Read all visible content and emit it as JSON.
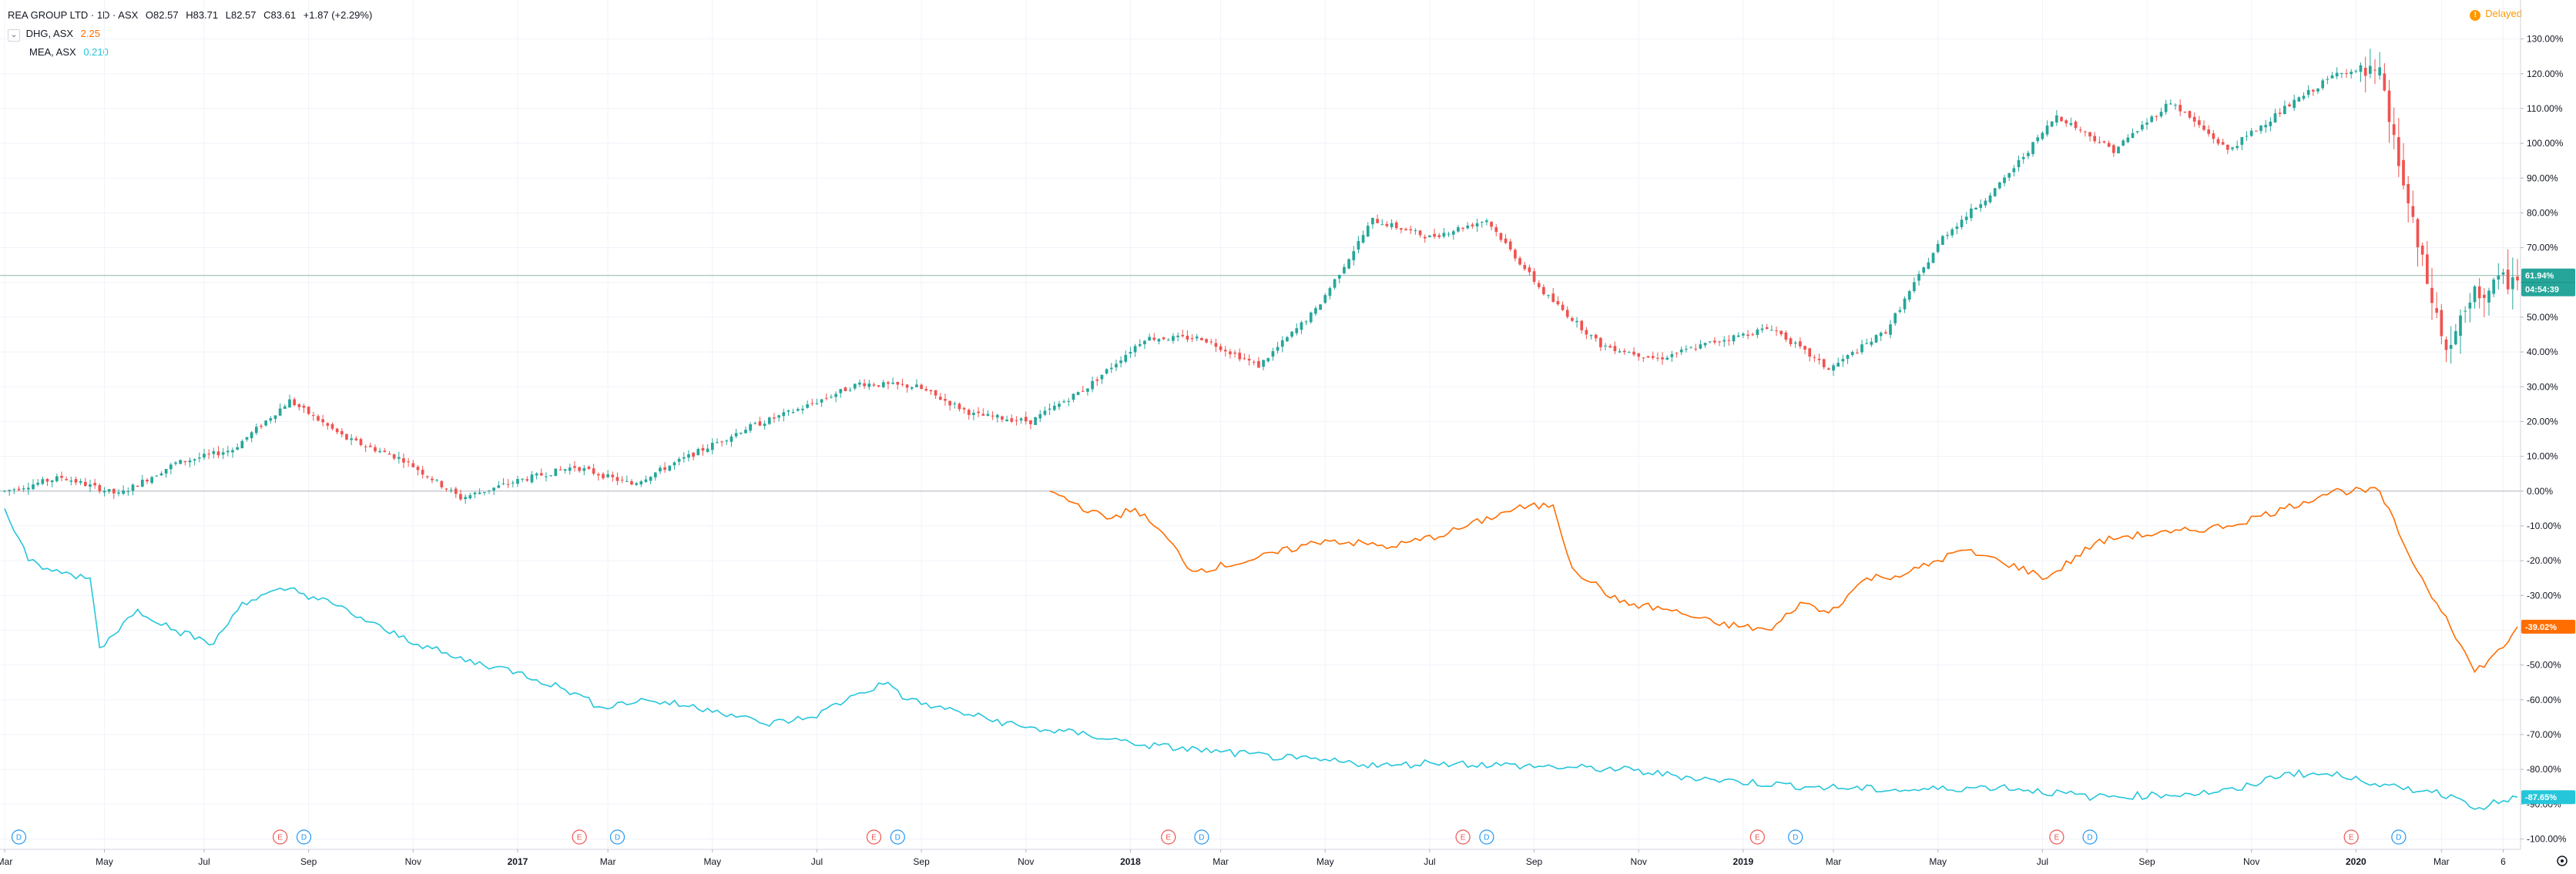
{
  "header": {
    "title": "REA GROUP LTD · 1D · ASX",
    "open": "O82.57",
    "high": "H83.71",
    "low": "L82.57",
    "close": "C83.61",
    "change": "+1.87 (+2.29%)",
    "collapse_glyph": "⌄",
    "delayed_label": "Delayed",
    "delayed_glyph": "!"
  },
  "compare": [
    {
      "symbol": "DHG, ASX",
      "value": "2.25",
      "color": "#ff6d00"
    },
    {
      "symbol": "MEA, ASX",
      "value": "0.210",
      "color": "#26c6da"
    }
  ],
  "colors": {
    "up": "#26a69a",
    "down": "#ef5350",
    "grid": "#f0f3fa",
    "zero_line": "#b2b5be"
  },
  "chart_data": {
    "type": "line",
    "title": "REA GROUP LTD · 1D · ASX",
    "y_unit": "%",
    "ylim": [
      -103,
      135
    ],
    "y_ticks": [
      130,
      120,
      110,
      100,
      90,
      80,
      70,
      60,
      50,
      40,
      30,
      20,
      10,
      0,
      -10,
      -20,
      -30,
      -40,
      -50,
      -60,
      -70,
      -80,
      -90,
      -100
    ],
    "x_ticks": [
      "Mar",
      "May",
      "Jul",
      "Sep",
      "Nov",
      "2017",
      "Mar",
      "May",
      "Jul",
      "Sep",
      "Nov",
      "2018",
      "Mar",
      "May",
      "Jul",
      "Sep",
      "Nov",
      "2019",
      "Mar",
      "May",
      "Jul",
      "Sep",
      "Nov",
      "2020",
      "Mar",
      "6"
    ],
    "x_tick_index": [
      0,
      21,
      42,
      64,
      86,
      108,
      127,
      149,
      171,
      193,
      215,
      237,
      256,
      278,
      300,
      322,
      344,
      366,
      385,
      407,
      429,
      451,
      473,
      495,
      513,
      526
    ],
    "n_days": 530,
    "grid": true,
    "series": [
      {
        "name": "REA GROUP LTD",
        "style": "candles",
        "color": "#26a69a",
        "x": [
          0,
          12,
          24,
          36,
          48,
          60,
          72,
          84,
          96,
          108,
          120,
          132,
          144,
          156,
          168,
          180,
          192,
          204,
          216,
          228,
          240,
          252,
          264,
          276,
          288,
          300,
          312,
          324,
          336,
          348,
          360,
          372,
          384,
          396,
          408,
          420,
          432,
          444,
          456,
          468,
          480,
          492,
          500,
          508,
          514,
          520,
          526,
          529
        ],
        "values": [
          0,
          4,
          -1,
          8,
          12,
          26,
          15,
          9,
          -2,
          3,
          7,
          2,
          10,
          18,
          24,
          31,
          30,
          22,
          20,
          30,
          44,
          44,
          36,
          52,
          78,
          73,
          78,
          57,
          42,
          38,
          43,
          47,
          35,
          46,
          73,
          88,
          108,
          98,
          112,
          98,
          110,
          121,
          119,
          70,
          40,
          56,
          60,
          62
        ]
      },
      {
        "name": "DHG, ASX",
        "style": "line",
        "color": "#ff6d00",
        "x": [
          220,
          232,
          238,
          245,
          250,
          262,
          278,
          292,
          304,
          318,
          326,
          330,
          340,
          350,
          360,
          372,
          378,
          384,
          392,
          400,
          412,
          420,
          430,
          440,
          446,
          456,
          468,
          480,
          490,
          500,
          505,
          510,
          514,
          520,
          526,
          529
        ],
        "values": [
          0,
          -8,
          -5,
          -14,
          -23,
          -20,
          -14,
          -16,
          -12,
          -5,
          -4,
          -22,
          -32,
          -34,
          -38,
          -40,
          -32,
          -35,
          -25,
          -24,
          -17,
          -20,
          -25,
          -15,
          -13,
          -12,
          -10,
          -5,
          0,
          0,
          -15,
          -28,
          -36,
          -52,
          -45,
          -39
        ]
      },
      {
        "name": "MEA, ASX",
        "style": "line",
        "color": "#26c6da",
        "x": [
          0,
          5,
          10,
          18,
          20,
          28,
          36,
          44,
          50,
          60,
          70,
          80,
          95,
          108,
          120,
          125,
          135,
          150,
          160,
          170,
          180,
          186,
          190,
          196,
          215,
          228,
          240,
          256,
          272,
          292,
          300,
          320,
          340,
          360,
          380,
          400,
          420,
          440,
          460,
          470,
          480,
          495,
          500,
          510,
          516,
          521,
          526,
          529
        ],
        "values": [
          -5,
          -20,
          -23,
          -25,
          -45,
          -34,
          -40,
          -44,
          -32,
          -28,
          -33,
          -40,
          -48,
          -52,
          -58,
          -62,
          -60,
          -63,
          -67,
          -65,
          -58,
          -55,
          -60,
          -62,
          -68,
          -70,
          -73,
          -75,
          -77,
          -79,
          -78,
          -79,
          -80,
          -83,
          -85,
          -86,
          -85,
          -88,
          -87,
          -86,
          -81,
          -82,
          -85,
          -86,
          -88,
          -91,
          -89,
          -88
        ]
      }
    ],
    "price_label": {
      "value": "61.94%",
      "time": "04:54:39"
    },
    "series_labels": [
      {
        "name": "DHG, ASX",
        "value": "-39.02%"
      },
      {
        "name": "MEA, ASX",
        "value": "-87.65%"
      }
    ],
    "events": [
      {
        "type": "D",
        "x": 3
      },
      {
        "type": "E",
        "x": 58
      },
      {
        "type": "D",
        "x": 63
      },
      {
        "type": "E",
        "x": 121
      },
      {
        "type": "D",
        "x": 129
      },
      {
        "type": "E",
        "x": 183
      },
      {
        "type": "D",
        "x": 188
      },
      {
        "type": "E",
        "x": 245
      },
      {
        "type": "D",
        "x": 252
      },
      {
        "type": "E",
        "x": 307
      },
      {
        "type": "D",
        "x": 312
      },
      {
        "type": "E",
        "x": 369
      },
      {
        "type": "D",
        "x": 377
      },
      {
        "type": "E",
        "x": 432
      },
      {
        "type": "D",
        "x": 439
      },
      {
        "type": "E",
        "x": 494
      },
      {
        "type": "D",
        "x": 504
      }
    ]
  }
}
